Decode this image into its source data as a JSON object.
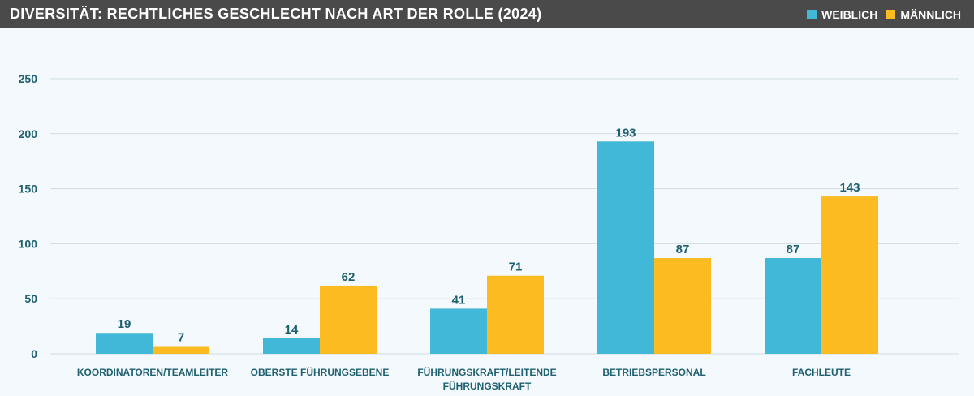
{
  "header": {
    "title": "DIVERSITÄT: RECHTLICHES GESCHLECHT NACH ART DER ROLLE (2024)"
  },
  "colors": {
    "header_bg": "#4a4a4a",
    "background": "#f3f9fc",
    "weiblich": "#41b8d8",
    "maennlich": "#fbbb21",
    "text": "#1f6070",
    "grid": "#cfdde4"
  },
  "chart_data": {
    "type": "bar",
    "title": "DIVERSITÄT: RECHTLICHES GESCHLECHT NACH ART DER ROLLE (2024)",
    "categories": [
      [
        "KOORDINATOREN/TEAMLEITER"
      ],
      [
        "OBERSTE FÜHRUNGSEBENE"
      ],
      [
        "FÜHRUNGSKRAFT/LEITENDE",
        "FÜHRUNGSKRAFT"
      ],
      [
        "BETRIEBSPERSONAL"
      ],
      [
        "FACHLEUTE"
      ]
    ],
    "series": [
      {
        "name": "WEIBLICH",
        "color": "#41b8d8",
        "values": [
          19,
          14,
          41,
          193,
          87
        ]
      },
      {
        "name": "MÄNNLICH",
        "color": "#fbbb21",
        "values": [
          7,
          62,
          71,
          87,
          143
        ]
      }
    ],
    "yticks": [
      0,
      50,
      100,
      150,
      200,
      250
    ],
    "ylim": [
      0,
      250
    ],
    "grid": true,
    "legend": "top-right",
    "data_labels": true
  }
}
